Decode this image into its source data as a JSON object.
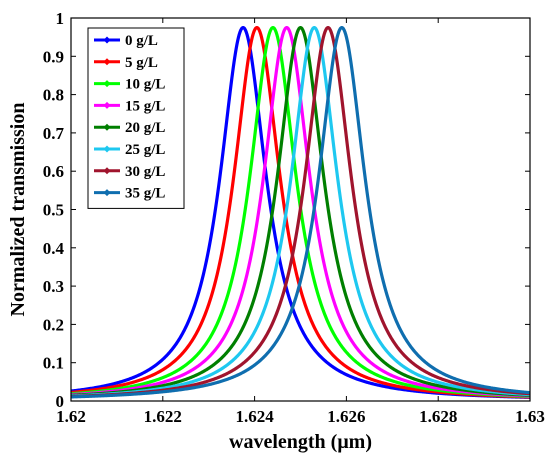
{
  "chart_data": {
    "type": "line",
    "title": "",
    "xlabel": "wavelength (μm)",
    "ylabel": "Normalized transmission",
    "xlim": [
      1.62,
      1.63
    ],
    "ylim": [
      0,
      1
    ],
    "x_ticks": [
      1.62,
      1.622,
      1.624,
      1.626,
      1.628,
      1.63
    ],
    "x_tick_labels": [
      "1.62",
      "1.622",
      "1.624",
      "1.626",
      "1.628",
      "1.63"
    ],
    "y_ticks": [
      0,
      0.1,
      0.2,
      0.3,
      0.4,
      0.5,
      0.6,
      0.7,
      0.8,
      0.9,
      1
    ],
    "y_tick_labels": [
      "0",
      "0.1",
      "0.2",
      "0.3",
      "0.4",
      "0.5",
      "0.6",
      "0.7",
      "0.8",
      "0.9",
      "1"
    ],
    "grid": false,
    "legend_position": "top-left",
    "curve_shape": "lorentzian",
    "peak_value": 0.975,
    "half_width_um": 0.00062,
    "series": [
      {
        "name": "0 g/L",
        "color": "#0000ff",
        "peak_x": 1.62375
      },
      {
        "name": "5 g/L",
        "color": "#ff0000",
        "peak_x": 1.62405
      },
      {
        "name": "10 g/L",
        "color": "#00ff00",
        "peak_x": 1.6244
      },
      {
        "name": "15 g/L",
        "color": "#ff00ff",
        "peak_x": 1.6247
      },
      {
        "name": "20 g/L",
        "color": "#007f00",
        "peak_x": 1.625
      },
      {
        "name": "25 g/L",
        "color": "#1ec8f0",
        "peak_x": 1.6253
      },
      {
        "name": "30 g/L",
        "color": "#a0142d",
        "peak_x": 1.6256
      },
      {
        "name": "35 g/L",
        "color": "#0f6eaf",
        "peak_x": 1.6259
      }
    ]
  }
}
